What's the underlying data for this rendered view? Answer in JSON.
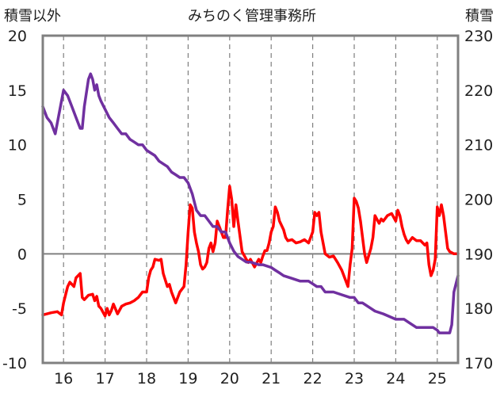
{
  "chart_data": {
    "type": "line",
    "title": "みちのく管理事務所",
    "ylabel_left": "積雪以外",
    "ylabel_right": "積雪",
    "x_ticks": [
      "16",
      "17",
      "18",
      "19",
      "20",
      "21",
      "22",
      "23",
      "24",
      "25"
    ],
    "xlim": [
      15.5,
      25.5
    ],
    "ylim_left": [
      -10,
      20
    ],
    "ylim_right": [
      170,
      230
    ],
    "left_ticks": [
      "20",
      "15",
      "10",
      "5",
      "0",
      "-5",
      "-10"
    ],
    "right_ticks": [
      "230",
      "220",
      "210",
      "200",
      "190",
      "180",
      "170"
    ],
    "grid": "dashed vertical at each tick, solid horizontal at 0",
    "series": [
      {
        "axis": "left",
        "color": "#ff0000",
        "x": [
          15.5,
          15.7,
          15.85,
          15.95,
          16.0,
          16.1,
          16.15,
          16.25,
          16.3,
          16.4,
          16.45,
          16.5,
          16.6,
          16.7,
          16.75,
          16.8,
          16.85,
          16.9,
          17.0,
          17.05,
          17.1,
          17.15,
          17.2,
          17.3,
          17.4,
          17.5,
          17.6,
          17.7,
          17.8,
          17.9,
          18.0,
          18.05,
          18.1,
          18.15,
          18.2,
          18.3,
          18.35,
          18.4,
          18.5,
          18.55,
          18.6,
          18.7,
          18.8,
          18.9,
          18.95,
          19.0,
          19.05,
          19.1,
          19.15,
          19.2,
          19.25,
          19.3,
          19.35,
          19.4,
          19.45,
          19.5,
          19.55,
          19.6,
          19.65,
          19.7,
          19.75,
          19.8,
          19.85,
          19.9,
          19.95,
          20.0,
          20.05,
          20.1,
          20.15,
          20.2,
          20.3,
          20.4,
          20.45,
          20.5,
          20.6,
          20.7,
          20.75,
          20.8,
          20.85,
          20.9,
          20.95,
          21.0,
          21.05,
          21.1,
          21.15,
          21.2,
          21.3,
          21.35,
          21.4,
          21.5,
          21.6,
          21.7,
          21.8,
          21.9,
          22.0,
          22.05,
          22.1,
          22.15,
          22.2,
          22.25,
          22.3,
          22.4,
          22.5,
          22.6,
          22.7,
          22.8,
          22.85,
          22.9,
          22.95,
          23.0,
          23.05,
          23.1,
          23.15,
          23.2,
          23.25,
          23.3,
          23.4,
          23.45,
          23.5,
          23.6,
          23.65,
          23.7,
          23.8,
          23.9,
          24.0,
          24.05,
          24.1,
          24.15,
          24.2,
          24.25,
          24.3,
          24.4,
          24.5,
          24.6,
          24.7,
          24.75,
          24.8,
          24.85,
          24.9,
          24.95,
          25.0,
          25.05,
          25.1,
          25.15,
          25.2,
          25.25,
          25.3,
          25.4,
          25.5
        ],
        "y": [
          -5.6,
          -5.4,
          -5.3,
          -5.6,
          -4.5,
          -3.0,
          -2.6,
          -3.0,
          -2.2,
          -1.8,
          -4.0,
          -4.2,
          -3.8,
          -3.7,
          -4.3,
          -3.9,
          -4.8,
          -5.0,
          -5.7,
          -5.0,
          -5.6,
          -5.2,
          -4.6,
          -5.5,
          -4.8,
          -4.6,
          -4.5,
          -4.3,
          -4.0,
          -3.5,
          -3.5,
          -2.2,
          -1.5,
          -1.2,
          -0.5,
          -0.6,
          -0.5,
          -1.8,
          -3.0,
          -2.8,
          -3.5,
          -4.5,
          -3.5,
          -3.0,
          -1.0,
          2.0,
          4.5,
          4.2,
          2.0,
          1.0,
          0.2,
          -1.0,
          -1.4,
          -1.2,
          -0.8,
          0.5,
          1.0,
          0.2,
          1.0,
          3.0,
          2.5,
          2.0,
          1.5,
          1.5,
          4.0,
          6.2,
          5.0,
          2.5,
          4.5,
          3.0,
          0.2,
          -0.5,
          -0.8,
          -0.5,
          -1.2,
          -0.5,
          -0.8,
          -0.2,
          0.3,
          0.3,
          1.0,
          2.0,
          2.5,
          4.3,
          3.8,
          3.0,
          2.2,
          1.5,
          1.2,
          1.3,
          1.0,
          1.1,
          1.3,
          1.0,
          2.0,
          3.8,
          3.5,
          3.8,
          2.0,
          1.0,
          0.0,
          -0.3,
          -0.2,
          -0.8,
          -1.5,
          -2.5,
          -3.0,
          -1.0,
          0.5,
          5.1,
          4.8,
          4.2,
          3.0,
          1.5,
          0.0,
          -0.8,
          0.5,
          1.5,
          3.5,
          2.8,
          3.2,
          3.0,
          3.5,
          3.7,
          3.0,
          4.0,
          3.5,
          2.5,
          1.8,
          1.3,
          1.0,
          1.5,
          1.2,
          1.2,
          0.8,
          1.0,
          -1.0,
          -2.0,
          -1.5,
          -0.5,
          4.3,
          3.5,
          4.5,
          3.5,
          2.0,
          0.5,
          0.2,
          0.0,
          0.0
        ]
      },
      {
        "axis": "right",
        "color": "#7030a0",
        "x": [
          15.5,
          15.6,
          15.7,
          15.75,
          15.8,
          16.0,
          16.1,
          16.2,
          16.3,
          16.4,
          16.45,
          16.5,
          16.6,
          16.65,
          16.7,
          16.75,
          16.8,
          16.85,
          16.9,
          17.0,
          17.1,
          17.2,
          17.3,
          17.4,
          17.5,
          17.6,
          17.7,
          17.8,
          17.9,
          18.0,
          18.1,
          18.2,
          18.3,
          18.4,
          18.5,
          18.6,
          18.7,
          18.8,
          18.9,
          19.0,
          19.1,
          19.2,
          19.3,
          19.4,
          19.5,
          19.6,
          19.7,
          19.8,
          19.9,
          20.0,
          20.1,
          20.2,
          20.3,
          20.4,
          20.5,
          20.7,
          20.8,
          21.0,
          21.1,
          21.2,
          21.3,
          21.5,
          21.7,
          21.9,
          22.0,
          22.1,
          22.2,
          22.3,
          22.5,
          22.7,
          22.9,
          23.0,
          23.1,
          23.2,
          23.4,
          23.5,
          23.7,
          24.0,
          24.2,
          24.3,
          24.5,
          24.6,
          24.7,
          24.8,
          24.9,
          25.0,
          25.05,
          25.1,
          25.2,
          25.3,
          25.35,
          25.4,
          25.5
        ],
        "y": [
          217,
          215,
          214,
          213,
          212,
          220,
          219,
          217,
          215,
          213,
          213,
          217,
          222,
          223,
          222,
          220,
          221,
          219,
          218,
          216.5,
          215,
          214,
          213,
          212,
          212,
          211,
          210.5,
          210,
          210,
          209,
          208.5,
          208,
          207,
          206.5,
          206,
          205,
          204.5,
          204,
          204,
          203,
          201,
          198,
          197,
          197,
          196,
          195,
          195,
          194,
          194,
          192,
          190.5,
          189.5,
          189,
          188.5,
          188.5,
          188,
          188,
          187.5,
          187,
          186.5,
          186,
          185.5,
          185,
          185,
          184.5,
          184,
          184,
          183,
          183,
          182.5,
          182,
          182,
          181,
          181,
          180,
          179.5,
          179,
          178,
          178,
          177.5,
          176.5,
          176.5,
          176.5,
          176.5,
          176.5,
          176,
          175.5,
          175.5,
          175.5,
          175.5,
          177,
          183,
          186
        ]
      }
    ]
  }
}
